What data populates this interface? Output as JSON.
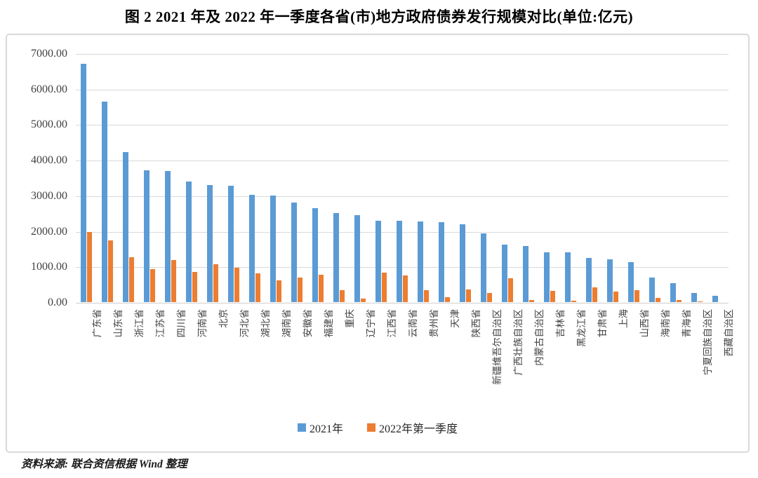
{
  "figure": {
    "title": "图 2  2021 年及 2022 年一季度各省(市)地方政府债券发行规模对比(单位:亿元)",
    "source_note": "资料来源: 联合资信根据 Wind 整理"
  },
  "colors": {
    "series_2021": "#5b9bd5",
    "series_2022q1": "#ed7d31",
    "gridline": "#d9d9d9",
    "axis_text": "#404040",
    "chart_border": "#d9d9d9"
  },
  "chart_data": {
    "type": "bar",
    "title": "2021年及2022年一季度各省(市)地方政府债券发行规模对比",
    "unit": "亿元",
    "xlabel": "",
    "ylabel": "",
    "ylim": [
      0,
      7000
    ],
    "yticks": [
      0,
      1000,
      2000,
      3000,
      4000,
      5000,
      6000,
      7000
    ],
    "ytick_labels": [
      "0.00",
      "1000.00",
      "2000.00",
      "3000.00",
      "4000.00",
      "5000.00",
      "6000.00",
      "7000.00"
    ],
    "grid": true,
    "legend_position": "bottom",
    "categories": [
      "广东省",
      "山东省",
      "浙江省",
      "江苏省",
      "四川省",
      "河南省",
      "北京",
      "河北省",
      "湖北省",
      "湖南省",
      "安徽省",
      "福建省",
      "重庆",
      "辽宁省",
      "江西省",
      "云南省",
      "贵州省",
      "天津",
      "陕西省",
      "新疆维吾尔自治区",
      "广西壮族自治区",
      "内蒙古自治区",
      "吉林省",
      "黑龙江省",
      "甘肃省",
      "上海",
      "山西省",
      "海南省",
      "青海省",
      "宁夏回族自治区",
      "西藏自治区"
    ],
    "series": [
      {
        "name": "2021年",
        "color": "#5b9bd5",
        "values": [
          6696,
          5638,
          4228,
          3700,
          3688,
          3400,
          3290,
          3275,
          3010,
          3000,
          2810,
          2650,
          2510,
          2455,
          2292,
          2288,
          2262,
          2240,
          2185,
          1935,
          1625,
          1570,
          1402,
          1392,
          1250,
          1212,
          1132,
          695,
          525,
          258,
          172
        ]
      },
      {
        "name": "2022年第一季度",
        "color": "#ed7d31",
        "values": [
          1968,
          1735,
          1255,
          935,
          1190,
          858,
          1060,
          965,
          808,
          605,
          688,
          763,
          332,
          104,
          828,
          740,
          330,
          148,
          348,
          250,
          668,
          55,
          315,
          35,
          405,
          298,
          340,
          122,
          62,
          22,
          0
        ]
      }
    ]
  }
}
